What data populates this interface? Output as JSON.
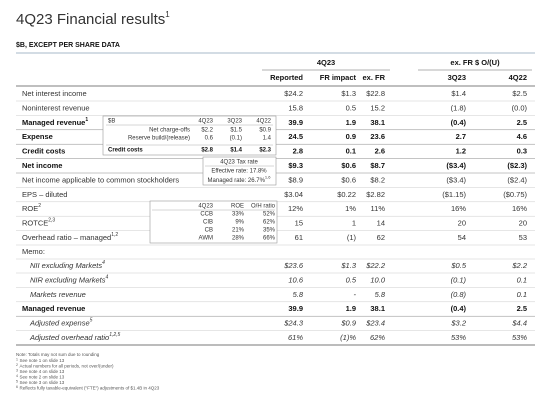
{
  "header": {
    "title": "4Q23 Financial results",
    "title_note": "1",
    "subtitle": "$B, EXCEPT PER SHARE DATA"
  },
  "table": {
    "groups": [
      {
        "label": "4Q23"
      },
      {
        "label": "ex. FR $ O/(U)"
      }
    ],
    "columns": [
      "Reported",
      "FR impact",
      "ex. FR",
      "3Q23",
      "4Q22"
    ],
    "rows": [
      {
        "label": "Net interest income",
        "values": [
          "$24.2",
          "$1.3",
          "$22.8",
          "$1.4",
          "$2.5"
        ]
      },
      {
        "label": "Noninterest revenue",
        "values": [
          "15.8",
          "0.5",
          "15.2",
          "(1.8)",
          "(0.0)"
        ]
      },
      {
        "label": "Managed revenue",
        "note": "1",
        "bold": true,
        "values": [
          "39.9",
          "1.9",
          "38.1",
          "(0.4)",
          "2.5"
        ]
      },
      {
        "label": "Expense",
        "bold": true,
        "values": [
          "24.5",
          "0.9",
          "23.6",
          "2.7",
          "4.6"
        ]
      },
      {
        "label": "Credit costs",
        "bold": true,
        "values": [
          "2.8",
          "0.1",
          "2.6",
          "1.2",
          "0.3"
        ]
      },
      {
        "label": "Net income",
        "bold": true,
        "values": [
          "$9.3",
          "$0.6",
          "$8.7",
          "($3.4)",
          "($2.3)"
        ]
      },
      {
        "label": "Net income applicable to common stockholders",
        "values": [
          "$8.9",
          "$0.6",
          "$8.2",
          "($3.4)",
          "($2.4)"
        ]
      },
      {
        "label": "EPS – diluted",
        "values": [
          "$3.04",
          "$0.22",
          "$2.82",
          "($1.15)",
          "($0.75)"
        ]
      },
      {
        "label": "ROE",
        "note": "2",
        "values": [
          "12%",
          "1%",
          "11%",
          "16%",
          "16%"
        ]
      },
      {
        "label": "ROTCE",
        "note": "2,3",
        "values": [
          "15",
          "1",
          "14",
          "20",
          "20"
        ]
      },
      {
        "label": "Overhead ratio – managed",
        "note": "1,2",
        "values": [
          "61",
          "(1)",
          "62",
          "54",
          "53"
        ]
      }
    ]
  },
  "memo": {
    "label": "Memo:",
    "rows": [
      {
        "label": "NII excluding Markets",
        "note": "4",
        "italic": true,
        "values": [
          "$23.6",
          "$1.3",
          "$22.2",
          "$0.5",
          "$2.2"
        ]
      },
      {
        "label": "NIR excluding Markets",
        "note": "4",
        "italic": true,
        "values": [
          "10.6",
          "0.5",
          "10.0",
          "(0.1)",
          "0.1"
        ]
      },
      {
        "label": "Markets revenue",
        "italic": true,
        "values": [
          "5.8",
          "-",
          "5.8",
          "(0.8)",
          "0.1"
        ]
      },
      {
        "label": "Managed revenue",
        "bold": true,
        "values": [
          "39.9",
          "1.9",
          "38.1",
          "(0.4)",
          "2.5"
        ]
      },
      {
        "label": "Adjusted expense",
        "note": "5",
        "italic": true,
        "values": [
          "$24.3",
          "$0.9",
          "$23.4",
          "$3.2",
          "$4.4"
        ]
      },
      {
        "label": "Adjusted overhead ratio",
        "note": "1,2,5",
        "italic": true,
        "values": [
          "61%",
          "(1)%",
          "62%",
          "53%",
          "53%"
        ]
      }
    ]
  },
  "credit_box": {
    "columns": [
      "$B",
      "4Q23",
      "3Q23",
      "4Q22"
    ],
    "rows": [
      [
        "Net charge-offs",
        "$2.2",
        "$1.5",
        "$0.9"
      ],
      [
        "Reserve build/(release)",
        "0.6",
        "(0.1)",
        "1.4"
      ],
      [
        "Credit costs",
        "$2.8",
        "$1.4",
        "$2.3"
      ]
    ]
  },
  "tax_box": {
    "title": "4Q23 Tax rate",
    "effective": "Effective rate: 17.8%",
    "managed": "Managed rate: 26.7%",
    "managed_note": "1,6"
  },
  "roe_box": {
    "columns": [
      "4Q23",
      "ROE",
      "O/H ratio"
    ],
    "rows": [
      [
        "CCB",
        "33%",
        "52%"
      ],
      [
        "CIB",
        "9%",
        "62%"
      ],
      [
        "CB",
        "21%",
        "35%"
      ],
      [
        "AWM",
        "28%",
        "66%"
      ]
    ]
  },
  "footnotes": {
    "note": "Note: Totals may not sum due to rounding",
    "items": [
      {
        "mark": "1",
        "text": "See note 1 on slide 13"
      },
      {
        "mark": "2",
        "text": "Actual numbers for all periods, not over/(under)"
      },
      {
        "mark": "3",
        "text": "See note 4 on slide 13"
      },
      {
        "mark": "4",
        "text": "See note 2 on slide 13"
      },
      {
        "mark": "5",
        "text": "See note 3 on slide 13"
      },
      {
        "mark": "6",
        "text": "Reflects fully taxable-equivalent (\"FTE\") adjustments of $1.4B in 4Q23"
      }
    ]
  }
}
